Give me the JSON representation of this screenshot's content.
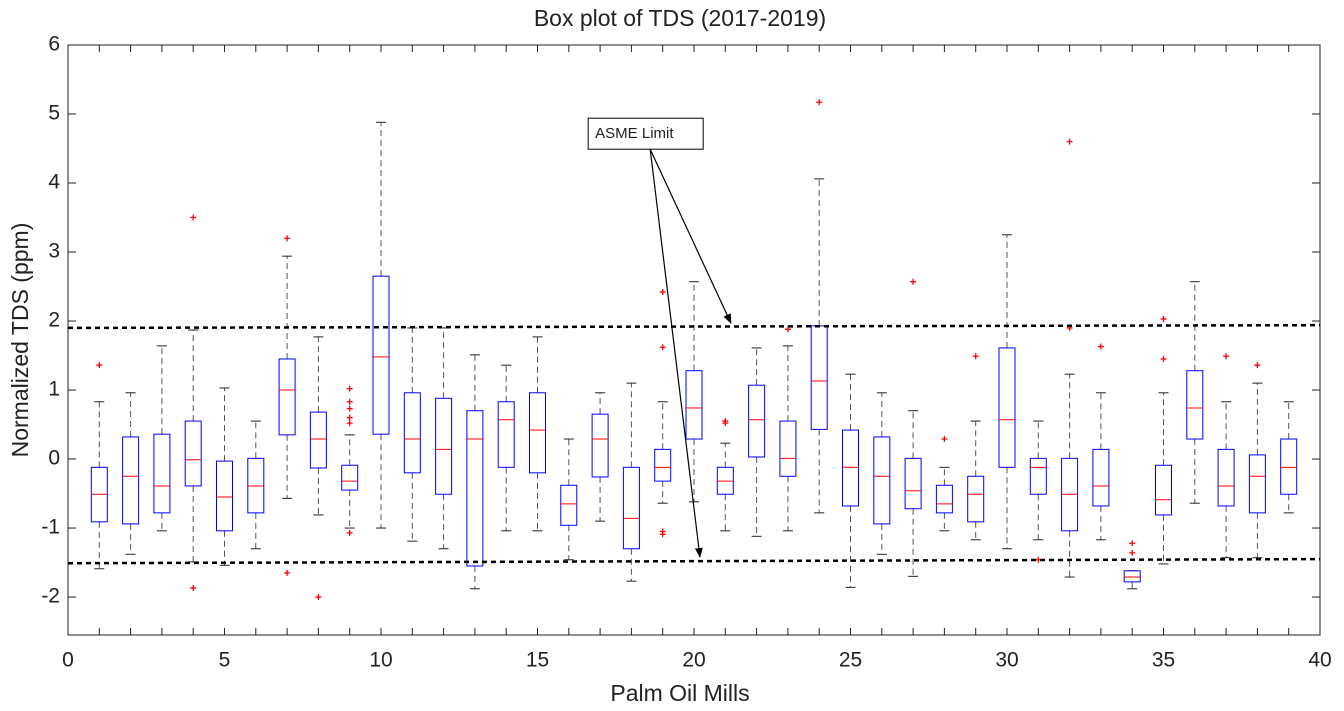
{
  "chart_data": {
    "type": "box",
    "title": "Box plot of TDS (2017-2019)",
    "x_label": "Palm Oil Mills",
    "y_label": "Normalized TDS (ppm)",
    "xlim": [
      0,
      40
    ],
    "xticks": [
      0,
      5,
      10,
      15,
      20,
      25,
      30,
      35,
      40
    ],
    "ylim": [
      -2.55,
      6
    ],
    "yticks": [
      -2,
      -1,
      0,
      1,
      2,
      3,
      4,
      5,
      6
    ],
    "box_color": "#0000ff",
    "median_color": "#ff0000",
    "whisker_color": "#555555",
    "outlier_color": "#ff0000",
    "x": [
      1,
      2,
      3,
      4,
      5,
      6,
      7,
      8,
      9,
      10,
      11,
      12,
      13,
      14,
      15,
      16,
      17,
      18,
      19,
      20,
      21,
      22,
      23,
      24,
      25,
      26,
      27,
      28,
      29,
      30,
      31,
      32,
      33,
      34,
      35,
      36,
      37,
      38,
      39
    ],
    "boxes": [
      {
        "whisker_low": -1.59,
        "q1": -0.91,
        "median": -0.51,
        "q3": -0.12,
        "whisker_high": 0.83,
        "outliers": [
          1.36
        ]
      },
      {
        "whisker_low": -1.38,
        "q1": -0.94,
        "median": -0.25,
        "q3": 0.32,
        "whisker_high": 0.96,
        "outliers": []
      },
      {
        "whisker_low": -1.04,
        "q1": -0.78,
        "median": -0.39,
        "q3": 0.36,
        "whisker_high": 1.64,
        "outliers": []
      },
      {
        "whisker_low": -1.49,
        "q1": -0.39,
        "median": -0.01,
        "q3": 0.55,
        "whisker_high": 1.87,
        "outliers": [
          3.5,
          -1.87
        ]
      },
      {
        "whisker_low": -1.54,
        "q1": -1.04,
        "median": -0.55,
        "q3": -0.03,
        "whisker_high": 1.03,
        "outliers": []
      },
      {
        "whisker_low": -1.3,
        "q1": -0.78,
        "median": -0.39,
        "q3": 0.01,
        "whisker_high": 0.55,
        "outliers": []
      },
      {
        "whisker_low": -0.57,
        "q1": 0.35,
        "median": 1.0,
        "q3": 1.45,
        "whisker_high": 2.94,
        "outliers": [
          3.2,
          -1.65
        ]
      },
      {
        "whisker_low": -0.81,
        "q1": -0.13,
        "median": 0.29,
        "q3": 0.68,
        "whisker_high": 1.77,
        "outliers": [
          -2.0
        ]
      },
      {
        "whisker_low": -1.0,
        "q1": -0.45,
        "median": -0.32,
        "q3": -0.09,
        "whisker_high": 0.35,
        "outliers": [
          1.02,
          0.83,
          0.73,
          0.6,
          0.52,
          -1.07
        ]
      },
      {
        "whisker_low": -1.0,
        "q1": 0.36,
        "median": 1.48,
        "q3": 2.65,
        "whisker_high": 4.88,
        "outliers": []
      },
      {
        "whisker_low": -1.19,
        "q1": -0.2,
        "median": 0.29,
        "q3": 0.96,
        "whisker_high": 1.9,
        "outliers": []
      },
      {
        "whisker_low": -1.3,
        "q1": -0.51,
        "median": 0.14,
        "q3": 0.88,
        "whisker_high": 1.9,
        "outliers": []
      },
      {
        "whisker_low": -1.88,
        "q1": -1.55,
        "median": 0.29,
        "q3": 0.7,
        "whisker_high": 1.51,
        "outliers": []
      },
      {
        "whisker_low": -1.04,
        "q1": -0.12,
        "median": 0.57,
        "q3": 0.83,
        "whisker_high": 1.36,
        "outliers": []
      },
      {
        "whisker_low": -1.04,
        "q1": -0.2,
        "median": 0.42,
        "q3": 0.96,
        "whisker_high": 1.77,
        "outliers": []
      },
      {
        "whisker_low": -1.46,
        "q1": -0.96,
        "median": -0.65,
        "q3": -0.38,
        "whisker_high": 0.29,
        "outliers": []
      },
      {
        "whisker_low": -0.9,
        "q1": -0.26,
        "median": 0.29,
        "q3": 0.65,
        "whisker_high": 0.96,
        "outliers": []
      },
      {
        "whisker_low": -1.77,
        "q1": -1.3,
        "median": -0.86,
        "q3": -0.12,
        "whisker_high": 1.1,
        "outliers": []
      },
      {
        "whisker_low": -0.64,
        "q1": -0.32,
        "median": -0.12,
        "q3": 0.14,
        "whisker_high": 0.83,
        "outliers": [
          2.42,
          1.62,
          -1.05,
          -1.09
        ]
      },
      {
        "whisker_low": -0.62,
        "q1": 0.29,
        "median": 0.74,
        "q3": 1.28,
        "whisker_high": 2.57,
        "outliers": []
      },
      {
        "whisker_low": -1.04,
        "q1": -0.51,
        "median": -0.32,
        "q3": -0.12,
        "whisker_high": 0.23,
        "outliers": [
          0.55,
          0.52
        ]
      },
      {
        "whisker_low": -1.12,
        "q1": 0.03,
        "median": 0.57,
        "q3": 1.07,
        "whisker_high": 1.61,
        "outliers": []
      },
      {
        "whisker_low": -1.04,
        "q1": -0.25,
        "median": 0.01,
        "q3": 0.55,
        "whisker_high": 1.64,
        "outliers": [
          1.88
        ]
      },
      {
        "whisker_low": -0.78,
        "q1": 0.43,
        "median": 1.13,
        "q3": 1.93,
        "whisker_high": 4.06,
        "outliers": [
          5.17
        ]
      },
      {
        "whisker_low": -1.86,
        "q1": -0.68,
        "median": -0.12,
        "q3": 0.42,
        "whisker_high": 1.23,
        "outliers": []
      },
      {
        "whisker_low": -1.38,
        "q1": -0.94,
        "median": -0.25,
        "q3": 0.32,
        "whisker_high": 0.96,
        "outliers": []
      },
      {
        "whisker_low": -1.7,
        "q1": -0.72,
        "median": -0.46,
        "q3": 0.01,
        "whisker_high": 0.7,
        "outliers": [
          2.57
        ]
      },
      {
        "whisker_low": -1.04,
        "q1": -0.78,
        "median": -0.65,
        "q3": -0.38,
        "whisker_high": -0.12,
        "outliers": [
          0.29
        ]
      },
      {
        "whisker_low": -1.17,
        "q1": -0.91,
        "median": -0.51,
        "q3": -0.25,
        "whisker_high": 0.55,
        "outliers": [
          1.49
        ]
      },
      {
        "whisker_low": -1.3,
        "q1": -0.12,
        "median": 0.57,
        "q3": 1.61,
        "whisker_high": 3.25,
        "outliers": []
      },
      {
        "whisker_low": -1.17,
        "q1": -0.51,
        "median": -0.12,
        "q3": 0.01,
        "whisker_high": 0.55,
        "outliers": [
          -1.46
        ]
      },
      {
        "whisker_low": -1.71,
        "q1": -1.04,
        "median": -0.51,
        "q3": 0.01,
        "whisker_high": 1.23,
        "outliers": [
          4.6,
          1.9
        ]
      },
      {
        "whisker_low": -1.17,
        "q1": -0.68,
        "median": -0.39,
        "q3": 0.14,
        "whisker_high": 0.96,
        "outliers": [
          1.63
        ]
      },
      {
        "whisker_low": -1.88,
        "q1": -1.78,
        "median": -1.71,
        "q3": -1.62,
        "whisker_high": -1.62,
        "outliers": [
          -1.22,
          -1.36
        ]
      },
      {
        "whisker_low": -1.52,
        "q1": -0.81,
        "median": -0.59,
        "q3": -0.09,
        "whisker_high": 0.96,
        "outliers": [
          2.03,
          1.45
        ]
      },
      {
        "whisker_low": -0.64,
        "q1": 0.29,
        "median": 0.74,
        "q3": 1.28,
        "whisker_high": 2.57,
        "outliers": []
      },
      {
        "whisker_low": -1.43,
        "q1": -0.68,
        "median": -0.39,
        "q3": 0.14,
        "whisker_high": 0.83,
        "outliers": [
          1.49
        ]
      },
      {
        "whisker_low": -1.43,
        "q1": -0.78,
        "median": -0.25,
        "q3": 0.06,
        "whisker_high": 1.1,
        "outliers": [
          1.36
        ]
      },
      {
        "whisker_low": -0.78,
        "q1": -0.51,
        "median": -0.12,
        "q3": 0.29,
        "whisker_high": 0.83,
        "outliers": []
      }
    ],
    "limit_lines": [
      {
        "x": [
          0,
          40
        ],
        "y": [
          1.9,
          1.94
        ]
      },
      {
        "x": [
          0,
          40
        ],
        "y": [
          -1.51,
          -1.45
        ]
      }
    ],
    "annotation": {
      "text": "ASME Limit",
      "x": 18.6,
      "y": 4.49,
      "arrows": [
        [
          21.18,
          1.97
        ],
        [
          20.19,
          -1.42
        ]
      ]
    }
  }
}
